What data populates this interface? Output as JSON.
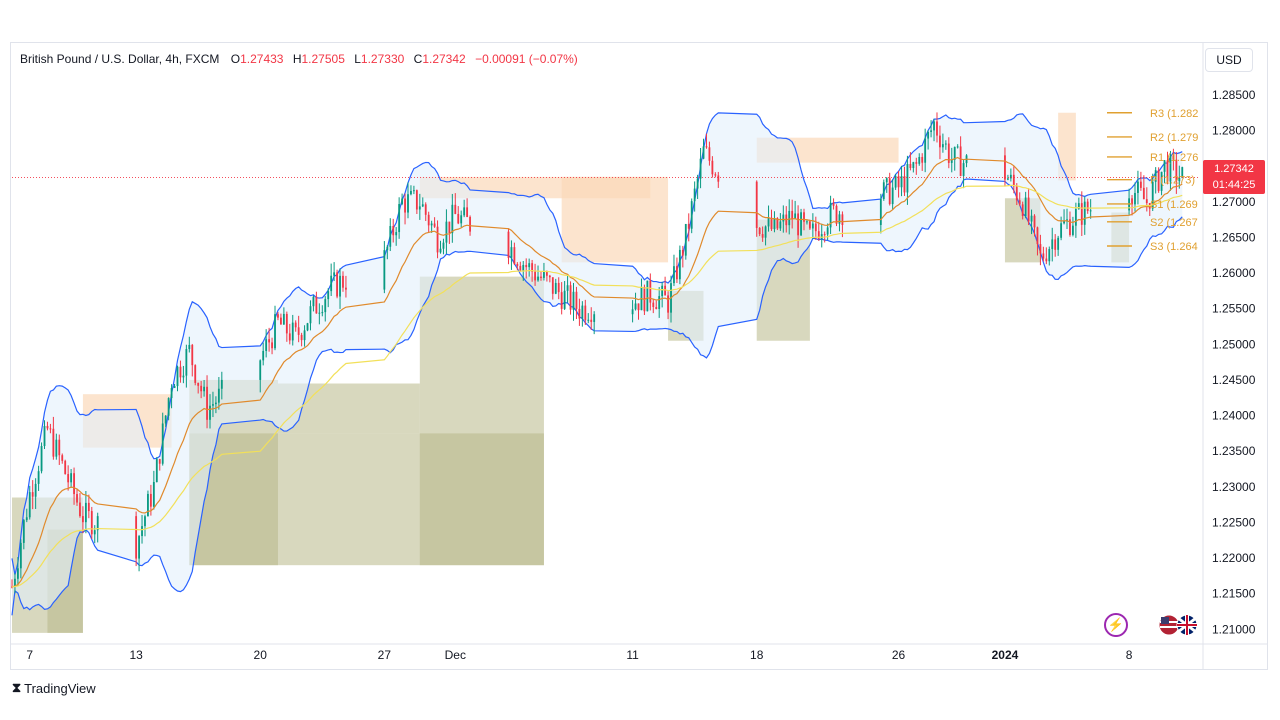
{
  "legend": {
    "symbol": "British Pound / U.S. Dollar, 4h, FXCM",
    "open_label": "O",
    "open": "1.27433",
    "high_label": "H",
    "high": "1.27505",
    "low_label": "L",
    "low": "1.27330",
    "close_label": "C",
    "close": "1.27342",
    "change": "−0.00091 (−0.07%)"
  },
  "currency": "USD",
  "last_price": {
    "price": "1.27342",
    "countdown": "01:44:25"
  },
  "brand": "TradingView",
  "colors": {
    "up": "#089981",
    "down": "#f23645",
    "bb": "#2962ff",
    "ema_fast": "#e08a2c",
    "ema_slow": "#f2e05a",
    "pivot": "#e0a030",
    "supply": "#fbd9b9",
    "demand": "#b8b888"
  },
  "icons": [
    "lightning-icon",
    "flags-icon",
    "tradingview-logo-icon"
  ],
  "chart_data": {
    "type": "candlestick",
    "title": "British Pound / U.S. Dollar, 4h, FXCM",
    "ylim": [
      1.2085,
      1.2885
    ],
    "y_ticks": [
      1.21,
      1.215,
      1.22,
      1.225,
      1.23,
      1.235,
      1.24,
      1.245,
      1.25,
      1.255,
      1.26,
      1.265,
      1.27,
      1.275,
      1.28,
      1.285
    ],
    "y_tick_labels": [
      "1.21000",
      "1.21500",
      "1.22000",
      "1.22500",
      "1.23000",
      "1.23500",
      "1.24000",
      "1.24500",
      "1.25000",
      "1.25500",
      "1.26000",
      "1.26500",
      "1.27000",
      "1.27500",
      "1.28000",
      "1.28500"
    ],
    "x_range": [
      "2023-11-06",
      "2024-01-12"
    ],
    "x_ticks": [
      {
        "date": "2023-11-07",
        "label": "7"
      },
      {
        "date": "2023-11-13",
        "label": "13"
      },
      {
        "date": "2023-11-20",
        "label": "20"
      },
      {
        "date": "2023-11-27",
        "label": "27"
      },
      {
        "date": "2023-12-01",
        "label": "Dec"
      },
      {
        "date": "2023-12-11",
        "label": "11"
      },
      {
        "date": "2023-12-18",
        "label": "18"
      },
      {
        "date": "2023-12-26",
        "label": "26"
      },
      {
        "date": "2024-01-01",
        "label": "2024"
      },
      {
        "date": "2024-01-08",
        "label": "8"
      }
    ],
    "price_path": [
      [
        "2023-11-06",
        1.216
      ],
      [
        "2023-11-07",
        1.229
      ],
      [
        "2023-11-08",
        1.238
      ],
      [
        "2023-11-09",
        1.232
      ],
      [
        "2023-11-10",
        1.226
      ],
      [
        "2023-11-13",
        1.222
      ],
      [
        "2023-11-14",
        1.23
      ],
      [
        "2023-11-15",
        1.245
      ],
      [
        "2023-11-16",
        1.249
      ],
      [
        "2023-11-17",
        1.241
      ],
      [
        "2023-11-20",
        1.248
      ],
      [
        "2023-11-21",
        1.253
      ],
      [
        "2023-11-22",
        1.251
      ],
      [
        "2023-11-23",
        1.255
      ],
      [
        "2023-11-24",
        1.258
      ],
      [
        "2023-11-27",
        1.262
      ],
      [
        "2023-11-28",
        1.27
      ],
      [
        "2023-11-29",
        1.27
      ],
      [
        "2023-11-30",
        1.265
      ],
      [
        "2023-12-01",
        1.268
      ],
      [
        "2023-12-04",
        1.264
      ],
      [
        "2023-12-05",
        1.261
      ],
      [
        "2023-12-06",
        1.259
      ],
      [
        "2023-12-07",
        1.257
      ],
      [
        "2023-12-08",
        1.255
      ],
      [
        "2023-12-11",
        1.256
      ],
      [
        "2023-12-12",
        1.257
      ],
      [
        "2023-12-13",
        1.256
      ],
      [
        "2023-12-14",
        1.265
      ],
      [
        "2023-12-15",
        1.277
      ],
      [
        "2023-12-18",
        1.267
      ],
      [
        "2023-12-19",
        1.266
      ],
      [
        "2023-12-20",
        1.268
      ],
      [
        "2023-12-21",
        1.265
      ],
      [
        "2023-12-22",
        1.268
      ],
      [
        "2023-12-26",
        1.272
      ],
      [
        "2023-12-27",
        1.275
      ],
      [
        "2023-12-28",
        1.281
      ],
      [
        "2023-12-29",
        1.276
      ],
      [
        "2024-01-01",
        1.274
      ],
      [
        "2024-01-02",
        1.27
      ],
      [
        "2024-01-03",
        1.262
      ],
      [
        "2024-01-04",
        1.266
      ],
      [
        "2024-01-05",
        1.268
      ],
      [
        "2024-01-08",
        1.272
      ],
      [
        "2024-01-09",
        1.27
      ],
      [
        "2024-01-10",
        1.275
      ],
      [
        "2024-01-11",
        1.2734
      ]
    ],
    "pivot_levels": [
      {
        "label": "R3 (1.282",
        "value": 1.2825
      },
      {
        "label": "R2 (1.279",
        "value": 1.2791
      },
      {
        "label": "R1 (1.276",
        "value": 1.2763
      },
      {
        "label": "P (1.273)",
        "value": 1.2731
      },
      {
        "label": "S1 (1.269",
        "value": 1.2697
      },
      {
        "label": "S2 (1.267",
        "value": 1.2672
      },
      {
        "label": "S3 (1.264",
        "value": 1.2638
      }
    ],
    "zones": [
      {
        "kind": "demand",
        "x0": "2023-11-06",
        "x1": "2023-11-10",
        "y0": 1.2095,
        "y1": 1.2285
      },
      {
        "kind": "demand",
        "x0": "2023-11-08",
        "x1": "2023-11-10",
        "y0": 1.2095,
        "y1": 1.224
      },
      {
        "kind": "supply",
        "x0": "2023-11-10",
        "x1": "2023-11-15",
        "y0": 1.2355,
        "y1": 1.243
      },
      {
        "kind": "demand",
        "x0": "2023-11-16",
        "x1": "2023-12-06",
        "y0": 1.219,
        "y1": 1.2375
      },
      {
        "kind": "demand",
        "x0": "2023-11-16",
        "x1": "2023-11-21",
        "y0": 1.219,
        "y1": 1.245
      },
      {
        "kind": "demand",
        "x0": "2023-11-21",
        "x1": "2023-11-29",
        "y0": 1.2375,
        "y1": 1.2445
      },
      {
        "kind": "demand",
        "x0": "2023-11-29",
        "x1": "2023-12-06",
        "y0": 1.219,
        "y1": 1.2595
      },
      {
        "kind": "supply",
        "x0": "2023-11-29",
        "x1": "2023-12-12",
        "y0": 1.2705,
        "y1": 1.2735
      },
      {
        "kind": "supply",
        "x0": "2023-12-07",
        "x1": "2023-12-13",
        "y0": 1.2615,
        "y1": 1.2735
      },
      {
        "kind": "demand",
        "x0": "2023-12-13",
        "x1": "2023-12-15",
        "y0": 1.2505,
        "y1": 1.2575
      },
      {
        "kind": "demand",
        "x0": "2023-12-18",
        "x1": "2023-12-21",
        "y0": 1.2505,
        "y1": 1.2675
      },
      {
        "kind": "supply",
        "x0": "2023-12-18",
        "x1": "2023-12-26",
        "y0": 1.2755,
        "y1": 1.279
      },
      {
        "kind": "demand",
        "x0": "2024-01-01",
        "x1": "2024-01-03",
        "y0": 1.2615,
        "y1": 1.2705
      },
      {
        "kind": "supply",
        "x0": "2024-01-04",
        "x1": "2024-01-05",
        "y0": 1.273,
        "y1": 1.2825
      },
      {
        "kind": "demand",
        "x0": "2024-01-07",
        "x1": "2024-01-08",
        "y0": 1.2615,
        "y1": 1.2685
      }
    ],
    "legend_placement": "top-left",
    "grid": false
  }
}
